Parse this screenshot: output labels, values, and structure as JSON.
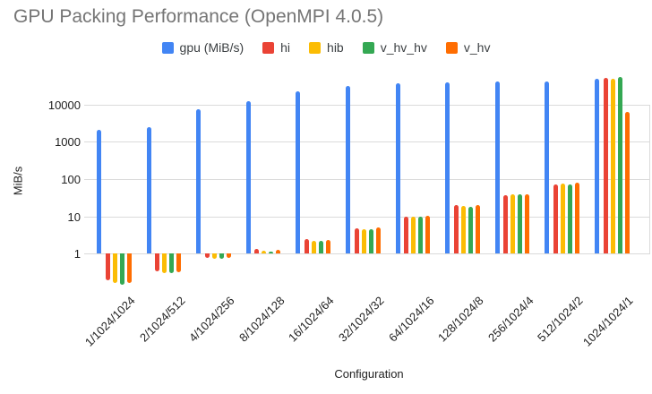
{
  "title": "GPU Packing Performance (OpenMPI 4.0.5)",
  "legend": {
    "items": [
      {
        "label": "gpu (MiB/s)",
        "color": "#4285F4"
      },
      {
        "label": "hi",
        "color": "#EA4335"
      },
      {
        "label": "hib",
        "color": "#FBBC04"
      },
      {
        "label": "v_hv_hv",
        "color": "#34A853"
      },
      {
        "label": "v_hv",
        "color": "#FF6D01"
      }
    ]
  },
  "axes": {
    "y_title": "MiB/s",
    "x_title": "Configuration",
    "y_tick_labels": [
      "1",
      "10",
      "100",
      "1000",
      "10000"
    ]
  },
  "chart_data": {
    "type": "bar",
    "title": "GPU Packing Performance (OpenMPI 4.0.5)",
    "xlabel": "Configuration",
    "ylabel": "MiB/s",
    "y_scale": "log",
    "y_ticks": [
      1,
      10,
      100,
      1000,
      10000
    ],
    "ylim": [
      0.13,
      57000
    ],
    "grid": true,
    "legend_position": "top",
    "categories": [
      "1/1024/1024",
      "2/1024/512",
      "4/1024/256",
      "8/1024/128",
      "16/1024/64",
      "32/1024/32",
      "64/1024/16",
      "128/1024/8",
      "256/1024/4",
      "512/1024/2",
      "1024/1024/1"
    ],
    "series": [
      {
        "name": "gpu (MiB/s)",
        "color": "#4285F4",
        "values": [
          2100,
          2500,
          7500,
          12000,
          22000,
          31000,
          36000,
          39000,
          42000,
          40000,
          48000
        ]
      },
      {
        "name": "hi",
        "color": "#EA4335",
        "values": [
          0.19,
          0.34,
          0.76,
          1.35,
          2.4,
          4.9,
          10,
          20.4,
          36,
          72,
          52000
        ]
      },
      {
        "name": "hib",
        "color": "#FBBC04",
        "values": [
          0.16,
          0.3,
          0.72,
          1.2,
          2.2,
          4.4,
          9.7,
          19.5,
          38,
          74,
          48000
        ]
      },
      {
        "name": "v_hv_hv",
        "color": "#34A853",
        "values": [
          0.15,
          0.3,
          0.73,
          1.15,
          2.2,
          4.6,
          9.8,
          18,
          39,
          73,
          53000
        ]
      },
      {
        "name": "v_hv",
        "color": "#FF6D01",
        "values": [
          0.16,
          0.32,
          0.76,
          1.25,
          2.3,
          5.1,
          10.3,
          20.4,
          38,
          78,
          6200
        ]
      }
    ]
  }
}
